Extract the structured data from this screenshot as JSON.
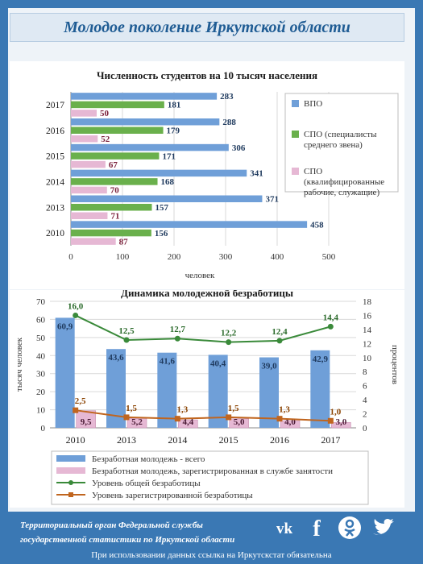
{
  "header": {
    "title": "Молодое поколение Иркутской области"
  },
  "chart_data": [
    {
      "type": "bar",
      "orientation": "horizontal",
      "title": "Численность студентов на 10 тысяч населения",
      "xlabel": "человек",
      "categories": [
        "2017",
        "2016",
        "2015",
        "2014",
        "2013",
        "2010"
      ],
      "xlim": [
        0,
        500
      ],
      "xticks": [
        "0",
        "100",
        "200",
        "300",
        "400",
        "500"
      ],
      "series": [
        {
          "name": "ВПО",
          "color": "#6f9fd8",
          "values": [
            283,
            288,
            306,
            341,
            371,
            458
          ]
        },
        {
          "name": "СПО (специалисты среднего звена)",
          "color": "#6ab04c",
          "values": [
            181,
            179,
            171,
            168,
            157,
            156
          ]
        },
        {
          "name": "СПО (квалифицированные рабочие, служащие)",
          "color": "#e6b8d4",
          "values": [
            50,
            52,
            67,
            70,
            71,
            87
          ]
        }
      ],
      "legend_position": "right"
    },
    {
      "type": "bar+line",
      "title": "Динамика молодежной безработицы",
      "categories": [
        "2010",
        "2013",
        "2014",
        "2015",
        "2016",
        "2017"
      ],
      "ylabel_left": "тысяч человек",
      "ylabel_right": "процентов",
      "ylim_left": [
        0,
        70
      ],
      "ylim_right": [
        0,
        18
      ],
      "yticks_left": [
        "0",
        "10",
        "20",
        "30",
        "40",
        "50",
        "60",
        "70"
      ],
      "yticks_right": [
        "0",
        "2",
        "4",
        "6",
        "8",
        "10",
        "12",
        "14",
        "16",
        "18"
      ],
      "bars": [
        {
          "name": "Безработная молодежь - всего",
          "color": "#6f9fd8",
          "values": [
            60.9,
            43.6,
            41.6,
            40.4,
            39.0,
            42.9
          ],
          "labels": [
            "60,9",
            "43,6",
            "41,6",
            "40,4",
            "39,0",
            "42,9"
          ]
        },
        {
          "name": "Безработная молодежь, зарегистрированная в службе занятости",
          "color": "#e6b8d4",
          "values": [
            9.5,
            5.2,
            4.4,
            5.0,
            4.0,
            3.0
          ],
          "labels": [
            "9,5",
            "5,2",
            "4,4",
            "5,0",
            "4,0",
            "3,0"
          ]
        }
      ],
      "lines": [
        {
          "name": "Уровень общей безработицы",
          "color": "#3a8a3a",
          "values": [
            16.0,
            12.5,
            12.7,
            12.2,
            12.4,
            14.4
          ],
          "labels": [
            "16,0",
            "12,5",
            "12,7",
            "12,2",
            "12,4",
            "14,4"
          ]
        },
        {
          "name": "Уровень зарегистрированной безработицы",
          "color": "#c0651e",
          "values": [
            2.5,
            1.5,
            1.3,
            1.5,
            1.3,
            1.0
          ],
          "labels": [
            "2,5",
            "1,5",
            "1,3",
            "1,5",
            "1,3",
            "1,0"
          ]
        }
      ],
      "legend_position": "bottom"
    }
  ],
  "footer": {
    "org_line1": "Территориальный орган Федеральной службы",
    "org_line2": "государственной статистики по Иркутской области",
    "social_icons": [
      "vk-icon",
      "facebook-icon",
      "odnoklassniki-icon",
      "twitter-icon"
    ],
    "note": "При использовании данных ссылка на Иркутскстат  обязательна"
  }
}
